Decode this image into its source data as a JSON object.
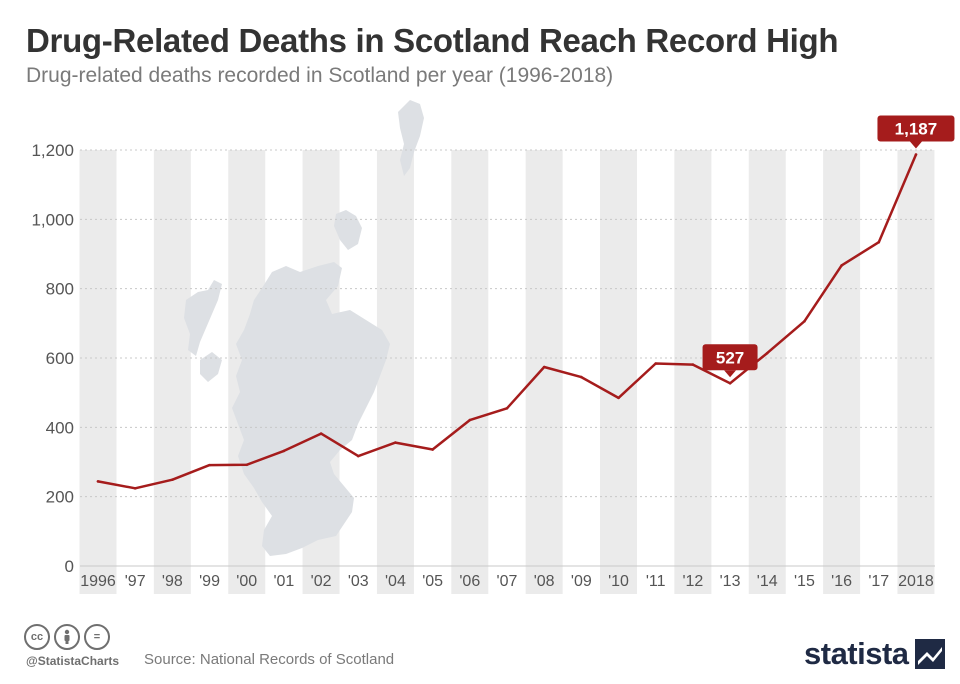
{
  "header": {
    "title": "Drug-Related Deaths in Scotland Reach Record High",
    "subtitle": "Drug-related deaths recorded in Scotland per year (1996-2018)"
  },
  "footer": {
    "handle": "@StatistaCharts",
    "source": "Source: National Records of Scotland",
    "brand": "statista",
    "license_icons": [
      "cc-icon",
      "person-icon",
      "equals-icon"
    ],
    "license_glyphs": [
      "cc",
      "",
      "="
    ]
  },
  "chart_data": {
    "type": "line",
    "title": "Drug-Related Deaths in Scotland Reach Record High",
    "subtitle": "Drug-related deaths recorded in Scotland per year (1996-2018)",
    "xlabel": "",
    "ylabel": "",
    "categories": [
      "1996",
      "'97",
      "'98",
      "'99",
      "'00",
      "'01",
      "'02",
      "'03",
      "'04",
      "'05",
      "'06",
      "'07",
      "'08",
      "'09",
      "'10",
      "'11",
      "'12",
      "'13",
      "'14",
      "'15",
      "'16",
      "'17",
      "2018"
    ],
    "series": [
      {
        "name": "",
        "color": "#a51c1c",
        "values": [
          244,
          224,
          249,
          291,
          292,
          332,
          382,
          317,
          356,
          336,
          421,
          455,
          574,
          545,
          485,
          584,
          581,
          527,
          614,
          706,
          867,
          934,
          1187
        ]
      }
    ],
    "callouts": [
      {
        "index": 17,
        "label": "527"
      },
      {
        "index": 22,
        "label": "1,187"
      }
    ],
    "ylim": [
      0,
      1200
    ],
    "yticks": [
      0,
      200,
      400,
      600,
      800,
      1000,
      1200
    ],
    "ytick_labels": [
      "0",
      "200",
      "400",
      "600",
      "800",
      "1,000",
      "1,200"
    ],
    "grid": true,
    "colors": {
      "line": "#a51c1c",
      "band": "#ebebeb",
      "map": "#dde0e4",
      "axis_text": "#555555"
    }
  }
}
